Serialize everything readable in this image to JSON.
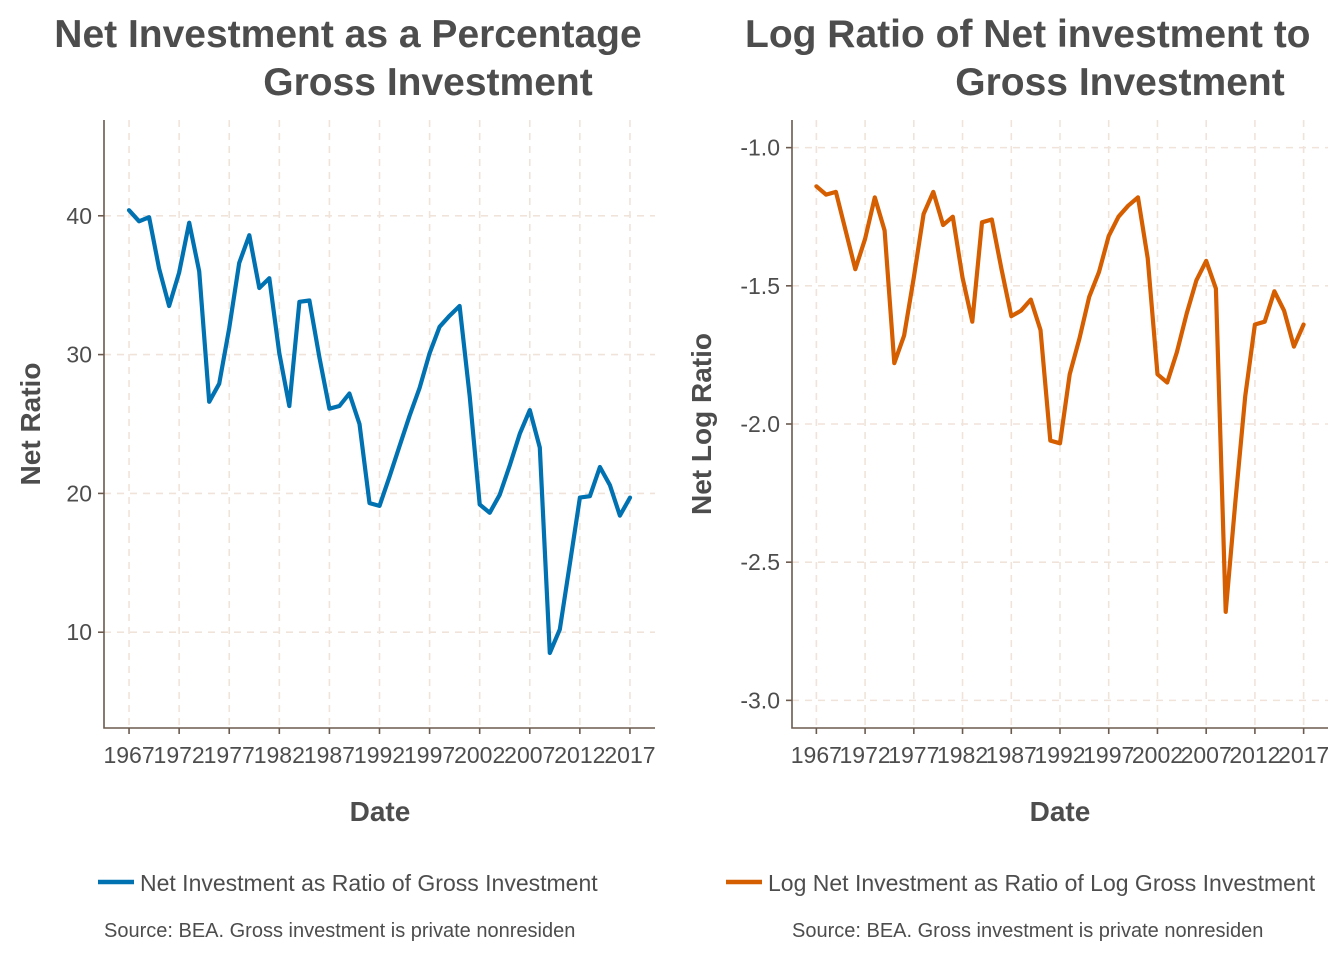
{
  "chart_data": [
    {
      "type": "line",
      "title_line1": "Net Investment as a Percentage",
      "title_line2": "Gross Investment",
      "xlabel": "Date",
      "ylabel": "Net Ratio",
      "xlim": [
        1964.5,
        2019.5
      ],
      "ylim": [
        3.1,
        46.9
      ],
      "x_ticks": [
        1967,
        1972,
        1977,
        1982,
        1987,
        1992,
        1997,
        2002,
        2007,
        2012,
        2017
      ],
      "y_ticks": [
        10,
        20,
        30,
        40
      ],
      "y_tick_labels": [
        "10",
        "20",
        "30",
        "40"
      ],
      "grid": true,
      "legend_position": "bottom",
      "color": "#0072b2",
      "series": [
        {
          "name": "Net Investment as Ratio of Gross Investment",
          "x": [
            1967,
            1968,
            1969,
            1970,
            1971,
            1972,
            1973,
            1974,
            1975,
            1976,
            1977,
            1978,
            1979,
            1980,
            1981,
            1982,
            1983,
            1984,
            1985,
            1986,
            1987,
            1988,
            1989,
            1990,
            1991,
            1992,
            1993,
            1994,
            1995,
            1996,
            1997,
            1998,
            1999,
            2000,
            2001,
            2002,
            2003,
            2004,
            2005,
            2006,
            2007,
            2008,
            2009,
            2010,
            2011,
            2012,
            2013,
            2014,
            2015,
            2016,
            2017
          ],
          "values": [
            40.4,
            39.6,
            39.9,
            36.2,
            33.5,
            35.9,
            39.5,
            36.0,
            26.6,
            27.9,
            31.9,
            36.6,
            38.6,
            34.8,
            35.5,
            30.1,
            26.3,
            33.8,
            33.9,
            29.8,
            26.1,
            26.3,
            27.2,
            25.0,
            19.3,
            19.1,
            21.2,
            23.4,
            25.6,
            27.6,
            30.1,
            32.0,
            32.8,
            33.5,
            27.0,
            19.2,
            18.6,
            19.9,
            22.0,
            24.3,
            26.0,
            23.3,
            8.5,
            10.2,
            14.9,
            19.7,
            19.8,
            21.9,
            20.6,
            18.4,
            19.7
          ]
        }
      ],
      "caption": "Source: BEA. Gross investment is private nonresiden"
    },
    {
      "type": "line",
      "title_line1": "Log Ratio of Net investment to",
      "title_line2": "Gross Investment",
      "xlabel": "Date",
      "ylabel": "Net Log Ratio",
      "xlim": [
        1964.5,
        2019.5
      ],
      "ylim": [
        -3.1,
        -0.9
      ],
      "x_ticks": [
        1967,
        1972,
        1977,
        1982,
        1987,
        1992,
        1997,
        2002,
        2007,
        2012,
        2017
      ],
      "y_ticks": [
        -3.0,
        -2.5,
        -2.0,
        -1.5,
        -1.0
      ],
      "y_tick_labels": [
        "-3.0",
        "-2.5",
        "-2.0",
        "-1.5",
        "-1.0"
      ],
      "grid": true,
      "legend_position": "bottom",
      "color": "#d55e00",
      "series": [
        {
          "name": "Log Net Investment as Ratio of Log Gross Investment",
          "x": [
            1967,
            1968,
            1969,
            1970,
            1971,
            1972,
            1973,
            1974,
            1975,
            1976,
            1977,
            1978,
            1979,
            1980,
            1981,
            1982,
            1983,
            1984,
            1985,
            1986,
            1987,
            1988,
            1989,
            1990,
            1991,
            1992,
            1993,
            1994,
            1995,
            1996,
            1997,
            1998,
            1999,
            2000,
            2001,
            2002,
            2003,
            2004,
            2005,
            2006,
            2007,
            2008,
            2009,
            2010,
            2011,
            2012,
            2013,
            2014,
            2015,
            2016,
            2017
          ],
          "values": [
            -1.14,
            -1.17,
            -1.16,
            -1.3,
            -1.44,
            -1.33,
            -1.18,
            -1.3,
            -1.78,
            -1.68,
            -1.47,
            -1.24,
            -1.16,
            -1.28,
            -1.25,
            -1.47,
            -1.63,
            -1.27,
            -1.26,
            -1.44,
            -1.61,
            -1.59,
            -1.55,
            -1.66,
            -2.06,
            -2.07,
            -1.82,
            -1.69,
            -1.54,
            -1.45,
            -1.32,
            -1.25,
            -1.21,
            -1.18,
            -1.4,
            -1.82,
            -1.85,
            -1.74,
            -1.6,
            -1.48,
            -1.41,
            -1.51,
            -2.68,
            -2.28,
            -1.9,
            -1.64,
            -1.63,
            -1.52,
            -1.59,
            -1.72,
            -1.64
          ]
        }
      ],
      "caption": "Source: BEA. Gross investment is private nonresiden"
    }
  ]
}
